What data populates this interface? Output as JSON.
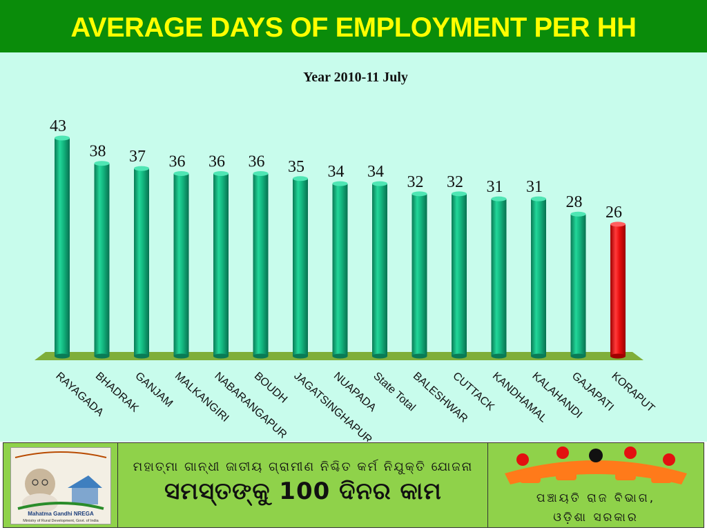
{
  "title": "AVERAGE DAYS OF EMPLOYMENT PER HH",
  "colors": {
    "title_bg": "#0a8c0a",
    "title_text": "#ffff00",
    "chart_bg": "#c8fcec",
    "bar": "#12b57e",
    "bar_highlight": "#e80e0e",
    "floor": "#7fae3a",
    "footer_bg": "#8fd24a"
  },
  "chart_data": {
    "type": "bar",
    "title": "Year 2010-11  July",
    "categories": [
      "RAYAGADA",
      "BHADRAK",
      "GANJAM",
      "MALKANGIRI",
      "NABARANGAPUR",
      "BOUDH",
      "JAGATSINGHAPUR",
      "NUAPADA",
      "State Total",
      "BALESHWAR",
      "CUTTACK",
      "KANDHAMAL",
      "KALAHANDI",
      "GAJAPATI",
      "KORAPUT"
    ],
    "values": [
      43,
      38,
      37,
      36,
      36,
      36,
      35,
      34,
      34,
      32,
      32,
      31,
      31,
      28,
      26
    ],
    "highlight": "KORAPUT",
    "bar_style": "3d-cylinder",
    "data_labels": true,
    "ylim": [
      0,
      45
    ]
  },
  "footer": {
    "logo_caption": "Mahatma Gandhi NREGA",
    "logo_subcaption": "Ministry of Rural Development, Govt. of India",
    "tagline": "ମହାତ୍ମା ଗାନ୍ଧୀ ଜାତୀୟ ଗ୍ରାମୀଣ ନିଶ୍ଚିତ କର୍ମ ନିଯୁକ୍ତି ଯୋଜନା",
    "headline": "ସମସ୍ତଙ୍କୁ 100 ଦିନର କାମ",
    "department": "ପଞ୍ଚାୟତି ରାଜ ବିଭାଗ,",
    "government": "ଓଡ଼ିଶା ସରକାର"
  }
}
